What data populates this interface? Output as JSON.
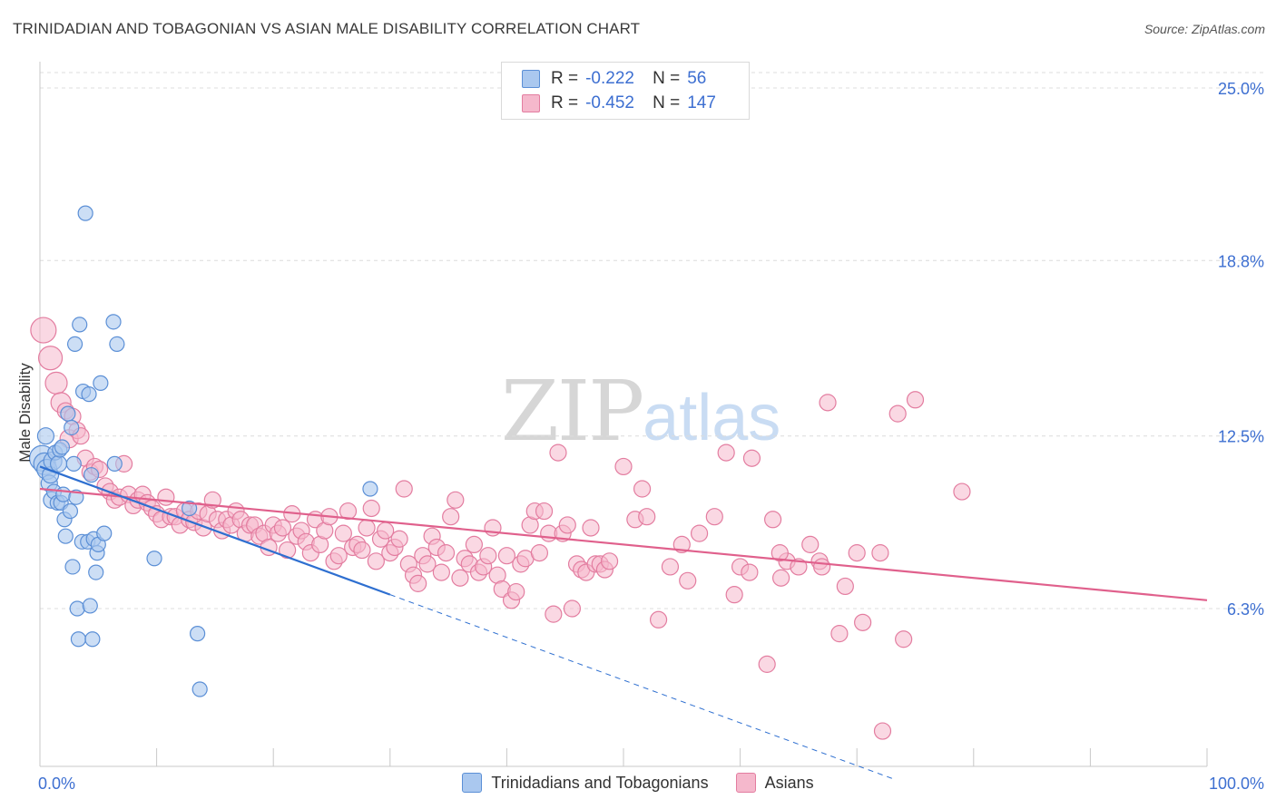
{
  "header": {
    "title": "TRINIDADIAN AND TOBAGONIAN VS ASIAN MALE DISABILITY CORRELATION CHART",
    "source": "Source: ZipAtlas.com"
  },
  "watermark": {
    "zip": "ZIP",
    "atlas": "atlas"
  },
  "legend_top": {
    "rows": [
      {
        "r_label": "R =",
        "r_value": "-0.222",
        "n_label": "N =",
        "n_value": "56"
      },
      {
        "r_label": "R =",
        "r_value": "-0.452",
        "n_label": "N =",
        "n_value": "147"
      }
    ]
  },
  "legend_bottom": {
    "items": [
      "Trinidadians and Tobagonians",
      "Asians"
    ]
  },
  "colors": {
    "blue_fill": "#aac8ef",
    "blue_stroke": "#5b8fd6",
    "blue_line": "#2e6fd0",
    "pink_fill": "#f5b8cc",
    "pink_stroke": "#e37da0",
    "pink_line": "#e0608c",
    "grid": "#dcdcdc",
    "axis_text": "#3d6fd1"
  },
  "chart_data": {
    "type": "scatter",
    "title": "TRINIDADIAN AND TOBAGONIAN VS ASIAN MALE DISABILITY CORRELATION CHART",
    "xlabel": "",
    "ylabel": "Male Disability",
    "xlim": [
      0,
      100
    ],
    "ylim": [
      0,
      26
    ],
    "x_tick_labels": [
      "0.0%",
      "100.0%"
    ],
    "y_ticks": [
      6.3,
      12.5,
      18.8,
      25.0
    ],
    "y_tick_labels": [
      "6.3%",
      "12.5%",
      "18.8%",
      "25.0%"
    ],
    "grid": true,
    "legend_position": "top-center",
    "series": [
      {
        "name": "Trinidadians and Tobagonians",
        "r": -0.222,
        "n": 56,
        "trend": {
          "x": [
            0,
            30
          ],
          "y": [
            11.4,
            6.8
          ]
        },
        "trend_extension": {
          "x": [
            30,
            73
          ],
          "y": [
            6.8,
            0.2
          ]
        },
        "points": [
          [
            0.2,
            11.7,
            14
          ],
          [
            0.4,
            11.5,
            12
          ],
          [
            0.5,
            12.5,
            9
          ],
          [
            0.6,
            11.3,
            11
          ],
          [
            0.8,
            10.8,
            9
          ],
          [
            0.9,
            11.1,
            9
          ],
          [
            1,
            10.2,
            9
          ],
          [
            1.1,
            11.6,
            10
          ],
          [
            1.2,
            10.5,
            8
          ],
          [
            1.3,
            11.9,
            8
          ],
          [
            1.5,
            10.1,
            8
          ],
          [
            1.6,
            11.5,
            9
          ],
          [
            1.7,
            12.0,
            8
          ],
          [
            1.8,
            10.1,
            8
          ],
          [
            1.9,
            12.1,
            8
          ],
          [
            2,
            10.4,
            8
          ],
          [
            2.1,
            9.5,
            8
          ],
          [
            2.2,
            8.9,
            8
          ],
          [
            2.4,
            13.3,
            8
          ],
          [
            2.6,
            9.8,
            8
          ],
          [
            2.7,
            12.8,
            8
          ],
          [
            2.8,
            7.8,
            8
          ],
          [
            2.9,
            11.5,
            8
          ],
          [
            3,
            15.8,
            8
          ],
          [
            3.1,
            10.3,
            8
          ],
          [
            3.2,
            6.3,
            8
          ],
          [
            3.3,
            5.2,
            8
          ],
          [
            3.4,
            16.5,
            8
          ],
          [
            3.6,
            8.7,
            8
          ],
          [
            3.7,
            14.1,
            8
          ],
          [
            3.9,
            20.5,
            8
          ],
          [
            4.1,
            8.7,
            8
          ],
          [
            4.2,
            14.0,
            8
          ],
          [
            4.3,
            6.4,
            8
          ],
          [
            4.4,
            11.1,
            8
          ],
          [
            4.5,
            5.2,
            8
          ],
          [
            4.6,
            8.8,
            8
          ],
          [
            4.8,
            7.6,
            8
          ],
          [
            4.9,
            8.3,
            8
          ],
          [
            5,
            8.6,
            8
          ],
          [
            5.2,
            14.4,
            8
          ],
          [
            5.5,
            9.0,
            8
          ],
          [
            6.3,
            16.6,
            8
          ],
          [
            6.4,
            11.5,
            8
          ],
          [
            6.6,
            15.8,
            8
          ],
          [
            9.8,
            8.1,
            8
          ],
          [
            12.8,
            9.9,
            8
          ],
          [
            13.5,
            5.4,
            8
          ],
          [
            13.7,
            3.4,
            8
          ],
          [
            28.3,
            10.6,
            8
          ]
        ]
      },
      {
        "name": "Asians",
        "r": -0.452,
        "n": 147,
        "trend": {
          "x": [
            0,
            100
          ],
          "y": [
            10.6,
            6.6
          ]
        },
        "points": [
          [
            0.3,
            16.3,
            14
          ],
          [
            0.9,
            15.3,
            13
          ],
          [
            1.4,
            14.4,
            12
          ],
          [
            1.8,
            13.7,
            11
          ],
          [
            2.2,
            13.4,
            9
          ],
          [
            2.5,
            12.4,
            10
          ],
          [
            2.8,
            13.2,
            9
          ],
          [
            3.2,
            12.7,
            9
          ],
          [
            3.5,
            12.5,
            9
          ],
          [
            3.9,
            11.7,
            9
          ],
          [
            4.3,
            11.2,
            9
          ],
          [
            4.7,
            11.4,
            9
          ],
          [
            5.1,
            11.3,
            9
          ],
          [
            5.6,
            10.7,
            9
          ],
          [
            6,
            10.5,
            9
          ],
          [
            6.4,
            10.2,
            9
          ],
          [
            6.8,
            10.3,
            9
          ],
          [
            7.2,
            11.5,
            9
          ],
          [
            7.6,
            10.4,
            9
          ],
          [
            8,
            10.0,
            9
          ],
          [
            8.4,
            10.2,
            9
          ],
          [
            8.8,
            10.4,
            9
          ],
          [
            9.2,
            10.1,
            9
          ],
          [
            9.6,
            9.9,
            9
          ],
          [
            10,
            9.7,
            9
          ],
          [
            10.4,
            9.5,
            9
          ],
          [
            10.8,
            10.3,
            9
          ],
          [
            11.2,
            9.6,
            9
          ],
          [
            11.6,
            9.6,
            9
          ],
          [
            12,
            9.3,
            9
          ],
          [
            12.4,
            9.8,
            9
          ],
          [
            12.8,
            9.5,
            9
          ],
          [
            13.2,
            9.4,
            9
          ],
          [
            13.6,
            9.8,
            9
          ],
          [
            14,
            9.2,
            9
          ],
          [
            14.4,
            9.7,
            9
          ],
          [
            14.8,
            10.2,
            9
          ],
          [
            15.2,
            9.5,
            9
          ],
          [
            15.6,
            9.1,
            9
          ],
          [
            16,
            9.5,
            9
          ],
          [
            16.4,
            9.3,
            9
          ],
          [
            16.8,
            9.8,
            9
          ],
          [
            17.2,
            9.5,
            9
          ],
          [
            17.6,
            9.0,
            9
          ],
          [
            18,
            9.3,
            9
          ],
          [
            18.4,
            9.3,
            9
          ],
          [
            18.8,
            8.9,
            9
          ],
          [
            19.2,
            9.0,
            9
          ],
          [
            19.6,
            8.5,
            9
          ],
          [
            20,
            9.3,
            9
          ],
          [
            20.4,
            9.0,
            9
          ],
          [
            20.8,
            9.2,
            9
          ],
          [
            21.2,
            8.4,
            9
          ],
          [
            21.6,
            9.7,
            9
          ],
          [
            22,
            8.9,
            9
          ],
          [
            22.4,
            9.1,
            9
          ],
          [
            22.8,
            8.7,
            9
          ],
          [
            23.2,
            8.3,
            9
          ],
          [
            23.6,
            9.5,
            9
          ],
          [
            24,
            8.6,
            9
          ],
          [
            24.4,
            9.1,
            9
          ],
          [
            24.8,
            9.6,
            9
          ],
          [
            25.2,
            8.0,
            9
          ],
          [
            25.6,
            8.2,
            9
          ],
          [
            26,
            9.0,
            9
          ],
          [
            26.4,
            9.8,
            9
          ],
          [
            26.8,
            8.5,
            9
          ],
          [
            27.2,
            8.6,
            9
          ],
          [
            27.6,
            8.4,
            9
          ],
          [
            28,
            9.2,
            9
          ],
          [
            28.4,
            9.9,
            9
          ],
          [
            28.8,
            8.0,
            9
          ],
          [
            29.2,
            8.8,
            9
          ],
          [
            29.6,
            9.1,
            9
          ],
          [
            30,
            8.3,
            9
          ],
          [
            30.4,
            8.5,
            9
          ],
          [
            30.8,
            8.8,
            9
          ],
          [
            31.2,
            10.6,
            9
          ],
          [
            31.6,
            7.9,
            9
          ],
          [
            32,
            7.5,
            9
          ],
          [
            32.4,
            7.2,
            9
          ],
          [
            32.8,
            8.2,
            9
          ],
          [
            33.2,
            7.9,
            9
          ],
          [
            33.6,
            8.9,
            9
          ],
          [
            34,
            8.5,
            9
          ],
          [
            34.4,
            7.6,
            9
          ],
          [
            34.8,
            8.3,
            9
          ],
          [
            35.2,
            9.6,
            9
          ],
          [
            35.6,
            10.2,
            9
          ],
          [
            36,
            7.4,
            9
          ],
          [
            36.4,
            8.1,
            9
          ],
          [
            36.8,
            7.9,
            9
          ],
          [
            37.2,
            8.6,
            9
          ],
          [
            37.6,
            7.6,
            9
          ],
          [
            38,
            7.8,
            9
          ],
          [
            38.4,
            8.2,
            9
          ],
          [
            38.8,
            9.2,
            9
          ],
          [
            39.2,
            7.5,
            9
          ],
          [
            39.6,
            7.0,
            9
          ],
          [
            40,
            8.2,
            9
          ],
          [
            40.4,
            6.6,
            9
          ],
          [
            40.8,
            6.9,
            9
          ],
          [
            41.2,
            7.9,
            9
          ],
          [
            41.6,
            8.1,
            9
          ],
          [
            42,
            9.3,
            9
          ],
          [
            42.4,
            9.8,
            9
          ],
          [
            42.8,
            8.3,
            9
          ],
          [
            43.2,
            9.8,
            9
          ],
          [
            43.6,
            9.0,
            9
          ],
          [
            44,
            6.1,
            9
          ],
          [
            44.4,
            11.9,
            9
          ],
          [
            44.8,
            9.0,
            9
          ],
          [
            45.2,
            9.3,
            9
          ],
          [
            45.6,
            6.3,
            9
          ],
          [
            46,
            7.9,
            9
          ],
          [
            46.4,
            7.7,
            9
          ],
          [
            46.8,
            7.6,
            9
          ],
          [
            47.2,
            9.2,
            9
          ],
          [
            47.6,
            7.9,
            9
          ],
          [
            48,
            7.9,
            9
          ],
          [
            48.4,
            7.7,
            9
          ],
          [
            48.8,
            8.0,
            9
          ],
          [
            50,
            11.4,
            9
          ],
          [
            51,
            9.5,
            9
          ],
          [
            51.6,
            10.6,
            9
          ],
          [
            52,
            9.6,
            9
          ],
          [
            53,
            5.9,
            9
          ],
          [
            54,
            7.8,
            9
          ],
          [
            55.5,
            7.3,
            9
          ],
          [
            56.5,
            9.0,
            9
          ],
          [
            57.8,
            9.6,
            9
          ],
          [
            58.8,
            11.9,
            9
          ],
          [
            59.5,
            6.8,
            9
          ],
          [
            60,
            7.8,
            9
          ],
          [
            61,
            11.7,
            9
          ],
          [
            62.3,
            4.3,
            9
          ],
          [
            62.8,
            9.5,
            9
          ],
          [
            63.5,
            7.4,
            9
          ],
          [
            64,
            8.0,
            9
          ],
          [
            65,
            7.8,
            9
          ],
          [
            66,
            8.6,
            9
          ],
          [
            66.8,
            8.0,
            9
          ],
          [
            67,
            7.8,
            9
          ],
          [
            67.5,
            13.7,
            9
          ],
          [
            68.5,
            5.4,
            9
          ],
          [
            69,
            7.1,
            9
          ],
          [
            70,
            8.3,
            9
          ],
          [
            70.5,
            5.8,
            9
          ],
          [
            72,
            8.3,
            9
          ],
          [
            72.2,
            1.9,
            9
          ],
          [
            73.5,
            13.3,
            9
          ],
          [
            74,
            5.2,
            9
          ],
          [
            75,
            13.8,
            9
          ],
          [
            79,
            10.5,
            9
          ],
          [
            63.4,
            8.3,
            9
          ],
          [
            60.8,
            7.6,
            9
          ],
          [
            55,
            8.6,
            9
          ]
        ]
      }
    ]
  }
}
